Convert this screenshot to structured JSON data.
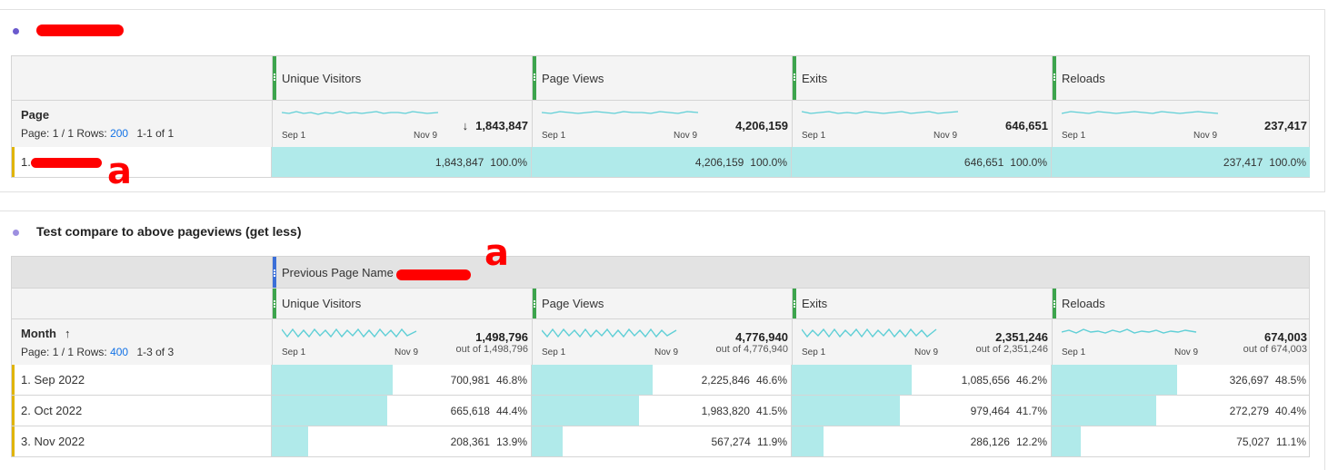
{
  "panel1": {
    "dimension": "Page",
    "page_info": {
      "prefix": "Page: 1 / 1  Rows:",
      "rows": "200",
      "range": "1-1 of 1"
    },
    "columns": [
      {
        "name": "Unique Visitors",
        "total": "1,843,847",
        "sort_icon": "arrow-down-icon",
        "spark_start": "Sep 1",
        "spark_end": "Nov 9"
      },
      {
        "name": "Page Views",
        "total": "4,206,159",
        "spark_start": "Sep 1",
        "spark_end": "Nov 9"
      },
      {
        "name": "Exits",
        "total": "646,651",
        "spark_start": "Sep 1",
        "spark_end": "Nov 9"
      },
      {
        "name": "Reloads",
        "total": "237,417",
        "spark_start": "Sep 1",
        "spark_end": "Nov 9"
      }
    ],
    "rows": [
      {
        "label": "1.",
        "cells": [
          {
            "value": "1,843,847",
            "pct": "100.0%",
            "fill": 1.0
          },
          {
            "value": "4,206,159",
            "pct": "100.0%",
            "fill": 1.0
          },
          {
            "value": "646,651",
            "pct": "100.0%",
            "fill": 1.0
          },
          {
            "value": "237,417",
            "pct": "100.0%",
            "fill": 1.0
          }
        ]
      }
    ]
  },
  "panel2": {
    "title": "Test compare to above pageviews (get less)",
    "segment_label": "Previous Page Name =",
    "dimension": "Month",
    "page_info": {
      "prefix": "Page: 1 / 1  Rows:",
      "rows": "400",
      "range": "1-3 of 3"
    },
    "columns": [
      {
        "name": "Unique Visitors",
        "total": "1,498,796",
        "outof": "out of 1,498,796",
        "spark_start": "Sep 1",
        "spark_end": "Nov 9"
      },
      {
        "name": "Page Views",
        "total": "4,776,940",
        "outof": "out of 4,776,940",
        "spark_start": "Sep 1",
        "spark_end": "Nov 9"
      },
      {
        "name": "Exits",
        "total": "2,351,246",
        "outof": "out of 2,351,246",
        "spark_start": "Sep 1",
        "spark_end": "Nov 9"
      },
      {
        "name": "Reloads",
        "total": "674,003",
        "outof": "out of 674,003",
        "spark_start": "Sep 1",
        "spark_end": "Nov 9"
      }
    ],
    "rows": [
      {
        "label": "1.  Sep 2022",
        "cells": [
          {
            "value": "700,981",
            "pct": "46.8%",
            "fill": 0.468
          },
          {
            "value": "2,225,846",
            "pct": "46.6%",
            "fill": 0.466
          },
          {
            "value": "1,085,656",
            "pct": "46.2%",
            "fill": 0.462
          },
          {
            "value": "326,697",
            "pct": "48.5%",
            "fill": 0.485
          }
        ]
      },
      {
        "label": "2.  Oct 2022",
        "cells": [
          {
            "value": "665,618",
            "pct": "44.4%",
            "fill": 0.444
          },
          {
            "value": "1,983,820",
            "pct": "41.5%",
            "fill": 0.415
          },
          {
            "value": "979,464",
            "pct": "41.7%",
            "fill": 0.417
          },
          {
            "value": "272,279",
            "pct": "40.4%",
            "fill": 0.404
          }
        ]
      },
      {
        "label": "3.  Nov 2022",
        "cells": [
          {
            "value": "208,361",
            "pct": "13.9%",
            "fill": 0.139
          },
          {
            "value": "567,274",
            "pct": "11.9%",
            "fill": 0.119
          },
          {
            "value": "286,126",
            "pct": "12.2%",
            "fill": 0.122
          },
          {
            "value": "75,027",
            "pct": "11.1%",
            "fill": 0.111
          }
        ]
      }
    ]
  },
  "annotation": "a",
  "colors": {
    "fill": "#b0eaea",
    "metric_bar": "#3da44d",
    "segment_bar": "#3b6fd8",
    "row_marker": "#e0b400",
    "redaction": "#ff0000",
    "sparkline": "#5fcfd6"
  }
}
